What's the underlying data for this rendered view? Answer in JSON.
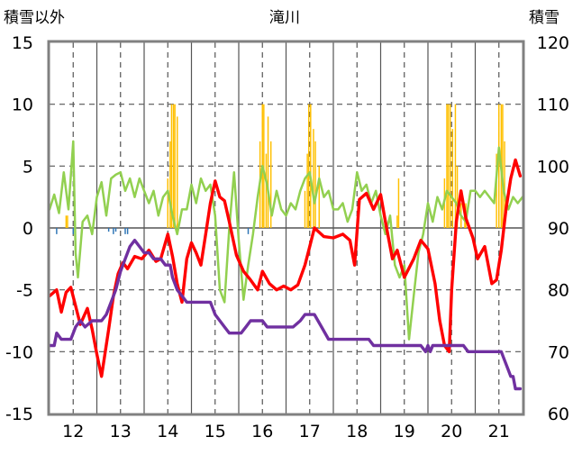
{
  "chart_data": {
    "type": "line",
    "title": "滝川",
    "y_left_label": "積雪以外",
    "y_right_label": "積雪",
    "x_range": [
      11.5,
      21.5
    ],
    "y_left_range": [
      -15,
      15
    ],
    "y_right_range": [
      60,
      120
    ],
    "x_ticks": [
      "12",
      "13",
      "14",
      "15",
      "16",
      "17",
      "18",
      "19",
      "20",
      "21"
    ],
    "y_left_ticks": [
      "15",
      "10",
      "5",
      "0",
      "-5",
      "-10",
      "-15"
    ],
    "y_right_ticks": [
      "120",
      "110",
      "100",
      "90",
      "80",
      "70",
      "60"
    ],
    "grid": true,
    "colors": {
      "red": "#ff0000",
      "green": "#92d050",
      "purple": "#7030a0",
      "orange_bars": "#ffc000",
      "blue_bars": "#2e75b6",
      "grid": "#555555",
      "frame": "#808080"
    },
    "series": [
      {
        "axis": "left",
        "color": "#ff0000",
        "x": [
          11.5,
          11.65,
          11.75,
          11.85,
          11.95,
          12.05,
          12.15,
          12.3,
          12.4,
          12.5,
          12.6,
          12.75,
          12.85,
          12.95,
          13.05,
          13.15,
          13.3,
          13.45,
          13.6,
          13.75,
          13.85,
          14.0,
          14.1,
          14.2,
          14.3,
          14.4,
          14.5,
          14.6,
          14.7,
          14.8,
          14.9,
          15.0,
          15.1,
          15.2,
          15.3,
          15.45,
          15.6,
          15.75,
          15.9,
          16.0,
          16.15,
          16.3,
          16.45,
          16.6,
          16.75,
          16.9,
          17.0,
          17.1,
          17.3,
          17.5,
          17.7,
          17.85,
          17.95,
          18.05,
          18.2,
          18.35,
          18.5,
          18.6,
          18.75,
          18.85,
          19.0,
          19.2,
          19.35,
          19.5,
          19.65,
          19.75,
          19.85,
          19.95,
          20.0,
          20.1,
          20.2,
          20.3,
          20.45,
          20.55,
          20.7,
          20.85,
          20.95,
          21.05,
          21.15,
          21.25,
          21.35,
          21.45
        ],
        "y": [
          -5.5,
          -5,
          -6.8,
          -5.2,
          -4.8,
          -6.3,
          -7.8,
          -6.5,
          -8.2,
          -10.2,
          -12,
          -8.2,
          -5.5,
          -3.7,
          -2.8,
          -3.3,
          -2.3,
          -2.5,
          -1.8,
          -2.7,
          -2.5,
          -0.5,
          -2.3,
          -4.5,
          -6,
          -2.5,
          -1.2,
          -2,
          -3,
          -0.5,
          2,
          3.8,
          2.5,
          2.2,
          0.5,
          -2.2,
          -3.5,
          -4.2,
          -5,
          -3.5,
          -4.5,
          -5,
          -4.7,
          -5,
          -4.6,
          -3,
          -1.5,
          0,
          -0.7,
          -0.8,
          -0.5,
          -1,
          -3,
          2.3,
          2.8,
          1.5,
          2.7,
          0.5,
          -2.5,
          -1.8,
          -4,
          -2.5,
          -1,
          -1.7,
          -4.5,
          -7.5,
          -9.5,
          -10,
          -5,
          0.5,
          3,
          0.8,
          -0.8,
          -2.5,
          -1.5,
          -4.5,
          -4.2,
          -1.8,
          1.5,
          4,
          5.5,
          4.2
        ]
      },
      {
        "axis": "left",
        "color": "#92d050",
        "x": [
          11.5,
          11.6,
          11.7,
          11.8,
          11.9,
          12.0,
          12.05,
          12.1,
          12.2,
          12.3,
          12.4,
          12.5,
          12.6,
          12.7,
          12.8,
          12.9,
          13.0,
          13.1,
          13.2,
          13.3,
          13.4,
          13.5,
          13.6,
          13.7,
          13.8,
          13.9,
          14.0,
          14.1,
          14.2,
          14.3,
          14.4,
          14.5,
          14.6,
          14.7,
          14.8,
          14.9,
          15.0,
          15.1,
          15.2,
          15.3,
          15.4,
          15.5,
          15.6,
          15.7,
          15.8,
          15.9,
          16.0,
          16.1,
          16.2,
          16.3,
          16.4,
          16.5,
          16.6,
          16.7,
          16.8,
          16.9,
          17.0,
          17.1,
          17.2,
          17.3,
          17.4,
          17.5,
          17.6,
          17.7,
          17.8,
          17.9,
          18.0,
          18.1,
          18.2,
          18.3,
          18.4,
          18.5,
          18.6,
          18.7,
          18.8,
          18.9,
          19.0,
          19.1,
          19.2,
          19.3,
          19.4,
          19.5,
          19.6,
          19.7,
          19.8,
          19.9,
          20.0,
          20.1,
          20.2,
          20.3,
          20.4,
          20.5,
          20.6,
          20.7,
          20.8,
          20.9,
          21.0,
          21.1,
          21.2,
          21.3,
          21.4,
          21.5
        ],
        "y": [
          1.5,
          2.7,
          1.2,
          4.5,
          1.5,
          7,
          -2,
          -4,
          0.5,
          1,
          -0.5,
          2.5,
          3.7,
          1,
          4,
          4.3,
          4.5,
          3,
          4,
          2.5,
          4,
          3,
          2,
          3,
          1,
          2.5,
          3,
          1,
          -0.5,
          1.5,
          1.5,
          3.5,
          2,
          4,
          3,
          3.5,
          1,
          -5,
          -6,
          0,
          4.5,
          -1,
          -5.8,
          -3,
          -0.5,
          2.5,
          5,
          3.5,
          1,
          3,
          1.5,
          1,
          2,
          1.5,
          3,
          4,
          4.5,
          2,
          4,
          2.5,
          3,
          1.5,
          1.5,
          2,
          0.5,
          1.5,
          4.5,
          3,
          3.5,
          2,
          3,
          1,
          -0.5,
          1,
          -3,
          -4,
          -3,
          -9,
          -5.5,
          -2,
          -0.5,
          2,
          0.5,
          2.5,
          1.5,
          3,
          2.5,
          2,
          1,
          0.5,
          3,
          3,
          2.5,
          3,
          2.5,
          2,
          6.5,
          3,
          1.5,
          2.5,
          2,
          2.5
        ]
      },
      {
        "axis": "right",
        "color": "#7030a0",
        "x": [
          11.5,
          11.6,
          11.65,
          11.75,
          11.85,
          11.95,
          12.0,
          12.05,
          12.15,
          12.25,
          12.4,
          12.5,
          12.6,
          12.7,
          12.8,
          12.9,
          13.0,
          13.1,
          13.2,
          13.3,
          13.4,
          13.5,
          13.6,
          13.7,
          13.8,
          13.85,
          13.95,
          14.05,
          14.1,
          14.2,
          14.3,
          14.4,
          14.55,
          14.75,
          14.9,
          15.0,
          15.1,
          15.2,
          15.3,
          15.45,
          15.55,
          15.65,
          15.75,
          15.85,
          16.0,
          16.1,
          16.25,
          16.45,
          16.65,
          16.8,
          16.9,
          17.0,
          17.1,
          17.25,
          17.4,
          17.55,
          17.75,
          17.9,
          17.95,
          18.0,
          18.1,
          18.25,
          18.35,
          18.45,
          18.6,
          18.75,
          18.9,
          19.0,
          19.15,
          19.35,
          19.45,
          19.5,
          19.55,
          19.6,
          19.65,
          19.7,
          19.75,
          19.85,
          20.0,
          20.1,
          20.25,
          20.35,
          20.4,
          20.5,
          20.65,
          20.85,
          21.0,
          21.05,
          21.1,
          21.2,
          21.25,
          21.3,
          21.35,
          21.45
        ],
        "y": [
          71,
          71,
          73,
          72,
          72,
          72,
          73,
          74,
          75,
          74,
          75,
          75,
          75,
          76,
          78,
          80,
          83,
          85,
          87,
          88,
          87,
          86,
          86,
          85,
          85,
          85,
          84,
          84,
          82,
          80,
          79,
          78,
          78,
          78,
          78,
          76,
          75,
          74,
          73,
          73,
          73,
          74,
          75,
          75,
          75,
          74,
          74,
          74,
          74,
          75,
          76,
          76,
          76,
          74,
          72,
          72,
          72,
          72,
          72,
          72,
          72,
          72,
          71,
          71,
          71,
          71,
          71,
          71,
          71,
          71,
          70,
          71,
          70,
          71,
          71,
          71,
          71,
          71,
          71,
          71,
          71,
          70,
          70,
          70,
          70,
          70,
          70,
          70,
          69,
          67,
          66,
          66,
          64,
          64
        ]
      }
    ],
    "bars": [
      {
        "color": "#ffc000",
        "axis": "left",
        "x": [
          11.85,
          11.88,
          14.0,
          14.05,
          14.08,
          14.12,
          14.15,
          14.2,
          15.95,
          16.0,
          16.03,
          16.08,
          16.12,
          16.18,
          16.9,
          16.95,
          16.98,
          17.02,
          17.08,
          17.12,
          17.2,
          18.85,
          18.88,
          19.85,
          19.9,
          19.93,
          19.97,
          20.02,
          20.08,
          20.12,
          20.2,
          20.28,
          20.3,
          20.95,
          21.0,
          21.05,
          21.08,
          21.12
        ],
        "values": [
          1,
          1,
          4,
          7,
          10,
          10,
          10,
          9,
          7,
          10,
          10,
          6,
          9,
          7,
          3,
          6,
          10,
          10,
          8,
          7,
          5,
          1,
          4,
          4,
          10,
          10,
          10,
          8,
          10,
          5,
          2,
          1,
          2,
          6,
          10,
          10,
          10,
          7
        ]
      },
      {
        "color": "#2e75b6",
        "axis": "left",
        "x": [
          11.65,
          12.0,
          12.4,
          12.75,
          12.85,
          12.9,
          13.1,
          13.15,
          15.7
        ],
        "values": [
          -0.5,
          -0.5,
          -0.5,
          -0.3,
          -0.5,
          -0.3,
          -0.5,
          -0.5,
          -0.5
        ]
      }
    ]
  }
}
